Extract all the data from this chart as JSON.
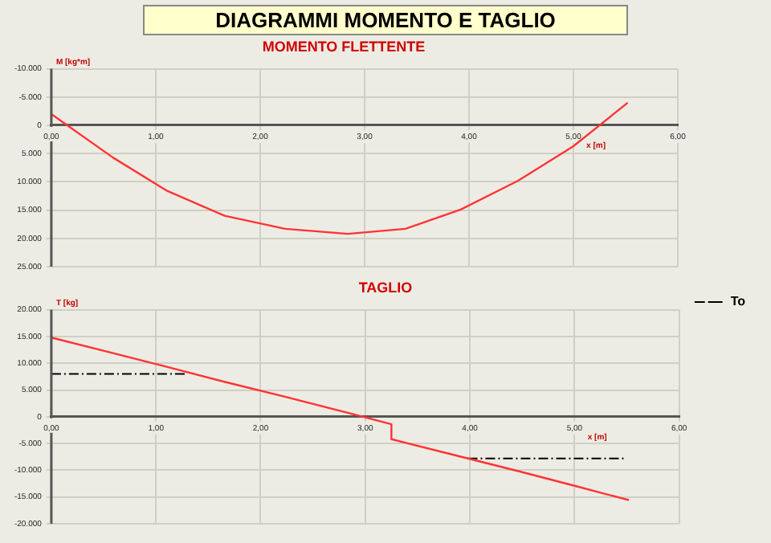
{
  "chart_data": [
    {
      "type": "line",
      "title": "MOMENTO FLETTENTE",
      "annotations": [
        "DIAGRAMMI MOMENTO E TAGLIO"
      ],
      "xlabel": "x [m]",
      "ylabel": "M [kg*m]",
      "series": [
        {
          "color": "#ff3333",
          "x": [
            0,
            0.59,
            1.11,
            1.66,
            2.24,
            2.84,
            3.39,
            3.92,
            4.47,
            5.0,
            5.52
          ],
          "values": [
            -2000,
            5700,
            11600,
            16000,
            18300,
            19200,
            18300,
            14900,
            9800,
            3700,
            -4000
          ]
        }
      ],
      "xlim": [
        0,
        6
      ],
      "xticks": [
        {
          "value": 0,
          "label": "0,00"
        },
        {
          "value": 1,
          "label": "1,00"
        },
        {
          "value": 2,
          "label": "2,00"
        },
        {
          "value": 3,
          "label": "3,00"
        },
        {
          "value": 4,
          "label": "4,00"
        },
        {
          "value": 5,
          "label": "5,00"
        },
        {
          "value": 6,
          "label": "6,00"
        }
      ],
      "ylim": [
        25000,
        -10000
      ],
      "yticks": [
        {
          "value": -10000,
          "label": "-10.000"
        },
        {
          "value": -5000,
          "label": "-5.000"
        },
        0,
        {
          "value": 5000,
          "label": "5.000"
        },
        {
          "value": 10000,
          "label": "10.000"
        },
        {
          "value": 15000,
          "label": "15.000"
        },
        {
          "value": 20000,
          "label": "20.000"
        },
        {
          "value": 25000,
          "label": "25.000"
        }
      ],
      "grid": true,
      "marker": "none",
      "legend": false
    },
    {
      "type": "line",
      "title": "TAGLIO",
      "xlabel": "x [m]",
      "ylabel": "T [kg]",
      "series": [
        {
          "color": "#ff3333",
          "x": [
            0,
            0.59,
            1.11,
            1.66,
            2.24,
            2.84,
            3.25,
            3.25,
            3.39,
            3.92,
            4.47,
            5.0,
            5.52
          ],
          "values": [
            14800,
            11900,
            9300,
            6500,
            3700,
            700,
            -1400,
            -4200,
            -4900,
            -7500,
            -10200,
            -12900,
            -15600
          ]
        },
        {
          "name": "To",
          "color": "#000000",
          "line_style": "dashed",
          "x": [
            0,
            1.28,
            2.6,
            3.98,
            5.47
          ],
          "values": [
            8000,
            8000,
            null,
            -7800,
            -7800
          ]
        }
      ],
      "xlim": [
        0,
        6
      ],
      "xticks": [
        {
          "value": 0,
          "label": "0,00"
        },
        {
          "value": 1,
          "label": "1,00"
        },
        {
          "value": 2,
          "label": "2,00"
        },
        {
          "value": 3,
          "label": "3,00"
        },
        {
          "value": 4,
          "label": "4,00"
        },
        {
          "value": 5,
          "label": "5,00"
        },
        {
          "value": 6,
          "label": "6,00"
        }
      ],
      "ylim": [
        -20000,
        20000
      ],
      "yticks": [
        {
          "value": -20000,
          "label": "-20.000"
        },
        {
          "value": -15000,
          "label": "-15.000"
        },
        {
          "value": -10000,
          "label": "-10.000"
        },
        {
          "value": -5000,
          "label": "-5.000"
        },
        0,
        {
          "value": 5000,
          "label": "5.000"
        },
        {
          "value": 10000,
          "label": "10.000"
        },
        {
          "value": 15000,
          "label": "15.000"
        },
        {
          "value": 20000,
          "label": "20.000"
        }
      ],
      "grid": true,
      "marker": "none",
      "legend": "right"
    }
  ]
}
